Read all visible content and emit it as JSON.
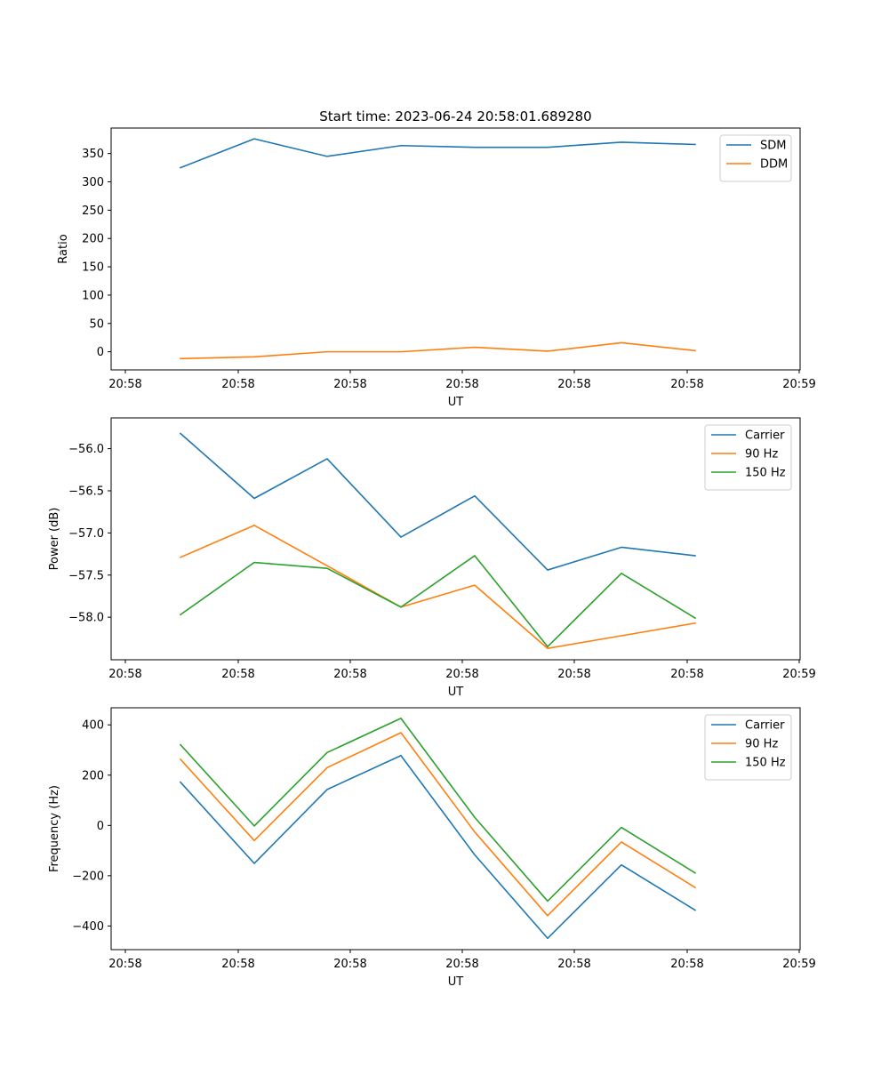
{
  "figure": {
    "title": "Start time: 2023-06-24 20:58:01.689280"
  },
  "chart_data": [
    {
      "type": "line",
      "title": "Start time: 2023-06-24 20:58:01.689280",
      "xlabel": "UT",
      "ylabel": "Ratio",
      "x_tick_labels": [
        "20:58",
        "20:58",
        "20:58",
        "20:58",
        "20:58",
        "20:58",
        "20:59"
      ],
      "yticks": [
        0,
        50,
        100,
        150,
        200,
        250,
        300,
        350
      ],
      "ylim": [
        -32,
        395
      ],
      "grid": false,
      "legend_position": "upper right",
      "series": [
        {
          "name": "SDM",
          "color": "#1f77b4",
          "values": [
            325,
            376,
            345,
            364,
            361,
            361,
            370,
            366
          ]
        },
        {
          "name": "DDM",
          "color": "#ff7f0e",
          "values": [
            -12,
            -9,
            0,
            0,
            8,
            1,
            16,
            2
          ]
        }
      ]
    },
    {
      "type": "line",
      "title": "",
      "xlabel": "UT",
      "ylabel": "Power (dB)",
      "x_tick_labels": [
        "20:58",
        "20:58",
        "20:58",
        "20:58",
        "20:58",
        "20:58",
        "20:59"
      ],
      "yticks": [
        -58.0,
        -57.5,
        -57.0,
        -56.5,
        -56.0
      ],
      "ytick_labels": [
        "−58.0",
        "−57.5",
        "−57.0",
        "−56.5",
        "−56.0"
      ],
      "ylim": [
        -58.505,
        -55.635
      ],
      "grid": false,
      "legend_position": "upper right",
      "series": [
        {
          "name": "Carrier",
          "color": "#1f77b4",
          "values": [
            -55.82,
            -56.59,
            -56.12,
            -57.05,
            -56.56,
            -57.44,
            -57.17,
            -57.27
          ]
        },
        {
          "name": "90 Hz",
          "color": "#ff7f0e",
          "values": [
            -57.29,
            -56.91,
            -57.39,
            -57.88,
            -57.62,
            -58.37,
            -58.22,
            -58.07
          ]
        },
        {
          "name": "150 Hz",
          "color": "#2ca02c",
          "values": [
            -57.97,
            -57.35,
            -57.42,
            -57.88,
            -57.27,
            -58.35,
            -57.48,
            -58.01
          ]
        }
      ]
    },
    {
      "type": "line",
      "title": "",
      "xlabel": "UT",
      "ylabel": "Frequency (Hz)",
      "x_tick_labels": [
        "20:58",
        "20:58",
        "20:58",
        "20:58",
        "20:58",
        "20:58",
        "20:59"
      ],
      "yticks": [
        -400,
        -200,
        0,
        200,
        400
      ],
      "ytick_labels": [
        "−400",
        "−200",
        "0",
        "200",
        "400"
      ],
      "ylim": [
        -494,
        468
      ],
      "grid": false,
      "legend_position": "upper right",
      "series": [
        {
          "name": "Carrier",
          "color": "#1f77b4",
          "values": [
            172,
            -151,
            143,
            278,
            -117,
            -449,
            -157,
            -337
          ]
        },
        {
          "name": "90 Hz",
          "color": "#ff7f0e",
          "values": [
            263,
            -60,
            230,
            369,
            -26,
            -359,
            -66,
            -247
          ]
        },
        {
          "name": "150 Hz",
          "color": "#2ca02c",
          "values": [
            321,
            -2,
            290,
            426,
            32,
            -301,
            -8,
            -189
          ]
        }
      ]
    }
  ]
}
